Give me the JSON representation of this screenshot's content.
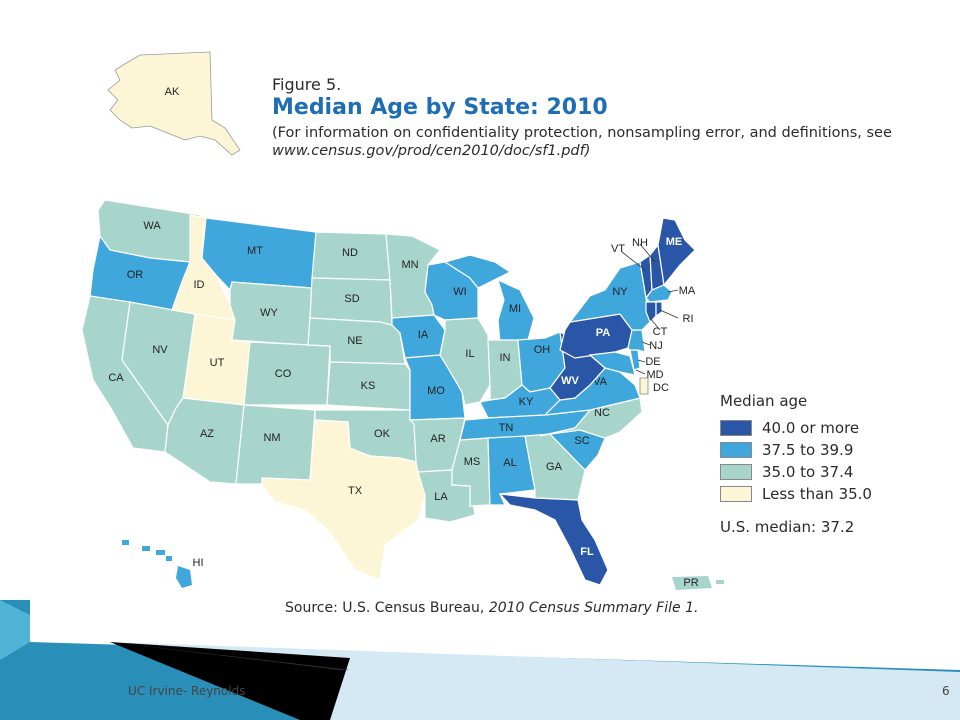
{
  "figure": {
    "label": "Figure 5.",
    "title": "Median Age by State: 2010",
    "note_prefix": "(For information on confidentiality protection, nonsampling error, and definitions, see",
    "note_url": "www.census.gov/prod/cen2010/doc/sf1.pdf)"
  },
  "legend": {
    "title": "Median age",
    "items": [
      {
        "label": "40.0 or more",
        "color": "#2a56a8"
      },
      {
        "label": "37.5 to 39.9",
        "color": "#3fa7dc"
      },
      {
        "label": "35.0 to 37.4",
        "color": "#a8d5cb"
      },
      {
        "label": "Less than 35.0",
        "color": "#fdf6d6"
      }
    ],
    "us_median": "U.S. median: 37.2"
  },
  "source": {
    "prefix": "Source: U.S. Census Bureau,",
    "title": "2010 Census Summary File 1."
  },
  "footer": {
    "left_text": "UC Irvine- Reynolds",
    "page_number": "6"
  },
  "states": {
    "AK": "AK",
    "WA": "WA",
    "OR": "OR",
    "CA": "CA",
    "ID": "ID",
    "NV": "NV",
    "UT": "UT",
    "AZ": "AZ",
    "MT": "MT",
    "WY": "WY",
    "CO": "CO",
    "NM": "NM",
    "ND": "ND",
    "SD": "SD",
    "NE": "NE",
    "KS": "KS",
    "OK": "OK",
    "TX": "TX",
    "MN": "MN",
    "IA": "IA",
    "MO": "MO",
    "AR": "AR",
    "LA": "LA",
    "WI": "WI",
    "IL": "IL",
    "MS": "MS",
    "MI": "MI",
    "IN": "IN",
    "KY": "KY",
    "TN": "TN",
    "AL": "AL",
    "OH": "OH",
    "WV": "WV",
    "VA": "VA",
    "NC": "NC",
    "SC": "SC",
    "GA": "GA",
    "FL": "FL",
    "PA": "PA",
    "NY": "NY",
    "VT": "VT",
    "NH": "NH",
    "ME": "ME",
    "MA": "MA",
    "RI": "RI",
    "CT": "CT",
    "NJ": "NJ",
    "DE": "DE",
    "MD": "MD",
    "DC": "DC",
    "HI": "HI",
    "PR": "PR"
  }
}
